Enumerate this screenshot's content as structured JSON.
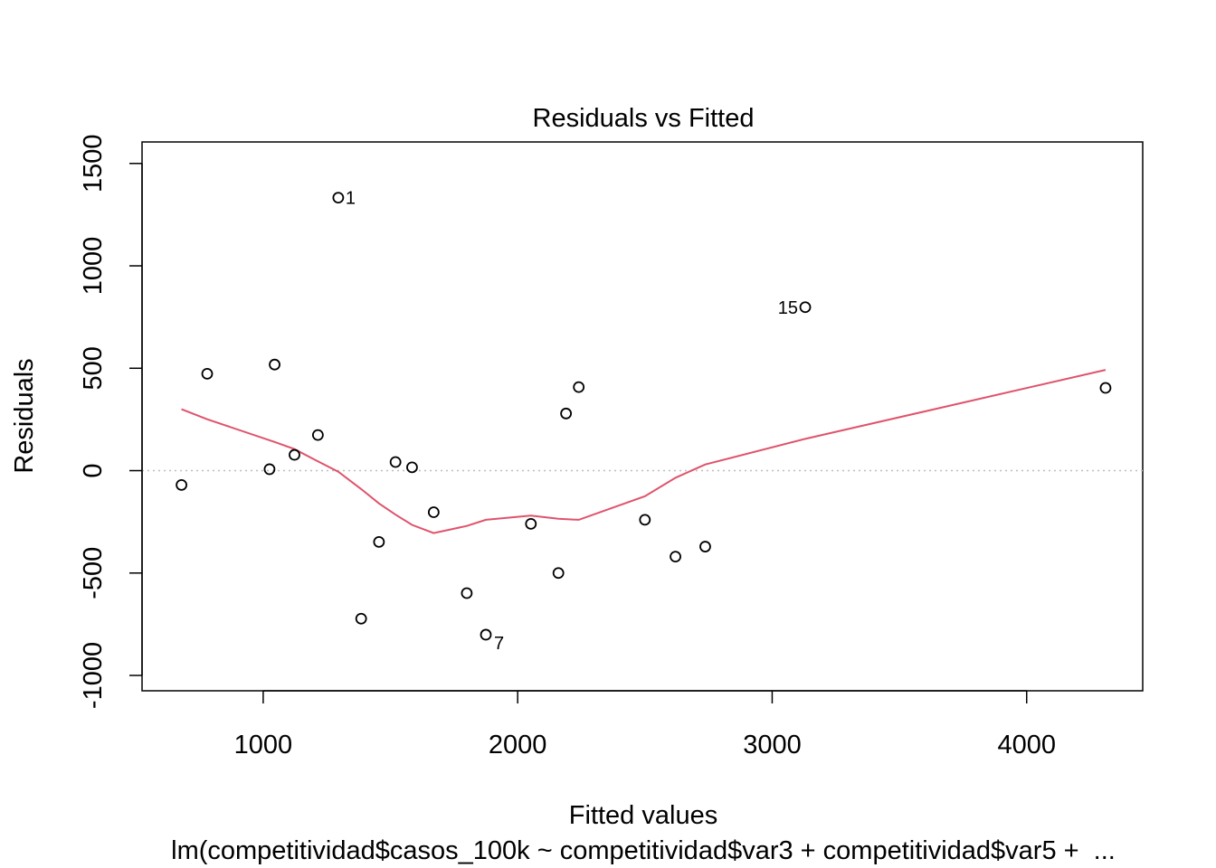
{
  "chart_data": {
    "type": "scatter",
    "title": "Residuals vs Fitted",
    "xlabel": "Fitted values",
    "ylabel": "Residuals",
    "subtitle": "lm(competitividad$casos_100k ~ competitividad$var3 + competitividad$var5 +  ...",
    "xlim": [
      524,
      4456
    ],
    "ylim": [
      -1075,
      1605
    ],
    "x_ticks": [
      1000,
      2000,
      3000,
      4000
    ],
    "x_tick_labels": [
      "1000",
      "2000",
      "3000",
      "4000"
    ],
    "y_ticks": [
      -1000,
      -500,
      0,
      500,
      1000,
      1500
    ],
    "y_tick_labels": [
      "-1000",
      "-500",
      "0",
      "500",
      "1000",
      "1500"
    ],
    "points": [
      {
        "x": 679,
        "y": -70,
        "label": ""
      },
      {
        "x": 780,
        "y": 473,
        "label": ""
      },
      {
        "x": 1025,
        "y": 7,
        "label": ""
      },
      {
        "x": 1045,
        "y": 518,
        "label": ""
      },
      {
        "x": 1123,
        "y": 77,
        "label": ""
      },
      {
        "x": 1215,
        "y": 174,
        "label": ""
      },
      {
        "x": 1295,
        "y": 1333,
        "label": "1"
      },
      {
        "x": 1385,
        "y": -723,
        "label": ""
      },
      {
        "x": 1455,
        "y": -348,
        "label": ""
      },
      {
        "x": 1520,
        "y": 42,
        "label": ""
      },
      {
        "x": 1585,
        "y": 16,
        "label": ""
      },
      {
        "x": 1670,
        "y": -203,
        "label": ""
      },
      {
        "x": 1800,
        "y": -598,
        "label": ""
      },
      {
        "x": 1875,
        "y": -801,
        "label": "7"
      },
      {
        "x": 2052,
        "y": -260,
        "label": ""
      },
      {
        "x": 2160,
        "y": -500,
        "label": ""
      },
      {
        "x": 2190,
        "y": 279,
        "label": ""
      },
      {
        "x": 2240,
        "y": 408,
        "label": ""
      },
      {
        "x": 2500,
        "y": -240,
        "label": ""
      },
      {
        "x": 2620,
        "y": -420,
        "label": ""
      },
      {
        "x": 2737,
        "y": -371,
        "label": ""
      },
      {
        "x": 3130,
        "y": 798,
        "label": "15"
      },
      {
        "x": 4310,
        "y": 404,
        "label": ""
      }
    ],
    "smooth_line": {
      "x": [
        679,
        780,
        1045,
        1123,
        1215,
        1295,
        1385,
        1455,
        1520,
        1585,
        1670,
        1800,
        1875,
        2052,
        2160,
        2240,
        2500,
        2620,
        2737,
        3130,
        4310
      ],
      "y": [
        300,
        251,
        140,
        105,
        45,
        -5,
        -90,
        -160,
        -215,
        -265,
        -305,
        -270,
        -240,
        -220,
        -235,
        -240,
        -125,
        -35,
        30,
        155,
        492
      ]
    },
    "reference_line": {
      "y": 0
    },
    "colors": {
      "points": "#000000",
      "smooth_line": "#DF536B",
      "reference_line": "#BEBEBE",
      "frame": "#000000"
    },
    "grid": false,
    "legend": "none"
  }
}
